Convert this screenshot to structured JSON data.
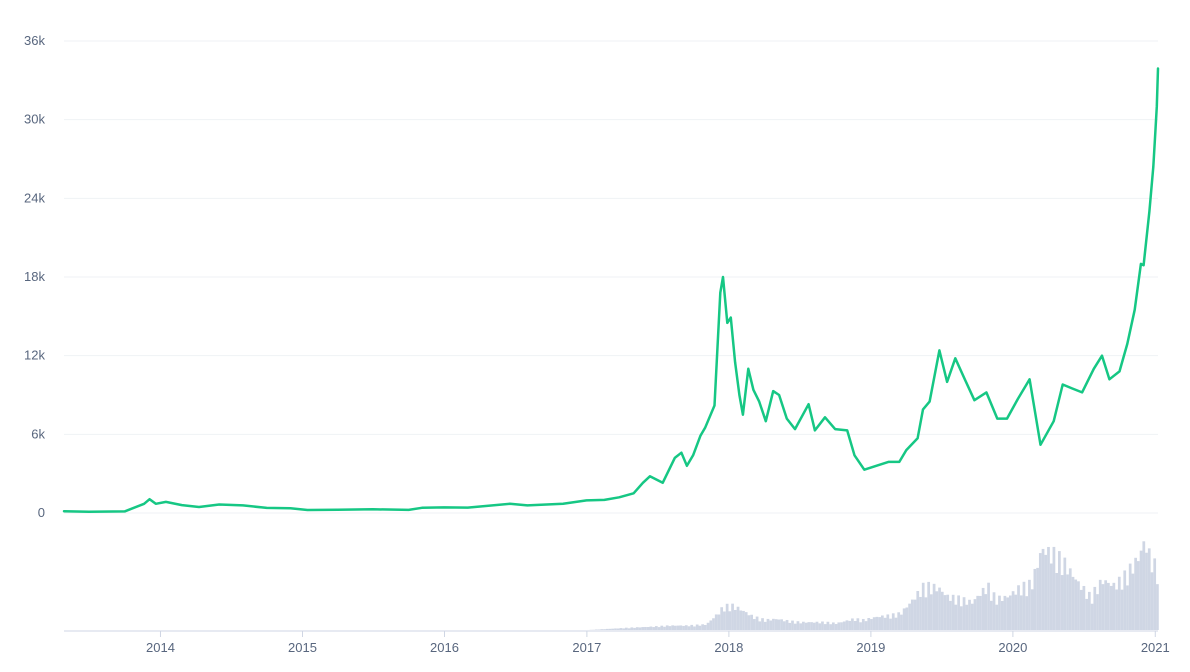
{
  "chart_data": {
    "type": "line",
    "title": "",
    "xlabel": "",
    "ylabel": "",
    "ylim": [
      0,
      36000
    ],
    "xlim": [
      "2013-04-28",
      "2021-01-08"
    ],
    "grid": true,
    "y_tick_labels": [
      "0",
      "6k",
      "12k",
      "18k",
      "24k",
      "30k",
      "36k"
    ],
    "y_tick_values": [
      0,
      6000,
      12000,
      18000,
      24000,
      30000,
      36000
    ],
    "x_tick_labels": [
      "2014",
      "2015",
      "2016",
      "2017",
      "2018",
      "2019",
      "2020",
      "2021"
    ],
    "x_tick_values": [
      "2014-01-01",
      "2015-01-01",
      "2016-01-01",
      "2017-01-01",
      "2018-01-01",
      "2019-01-01",
      "2020-01-01",
      "2021-01-01"
    ],
    "series": [
      {
        "name": "",
        "color": "#16c784",
        "x": [
          "2013-04-28",
          "2013-07-01",
          "2013-10-01",
          "2013-11-20",
          "2013-12-04",
          "2013-12-20",
          "2014-01-15",
          "2014-02-25",
          "2014-04-10",
          "2014-06-01",
          "2014-08-01",
          "2014-10-01",
          "2014-12-01",
          "2015-01-14",
          "2015-04-01",
          "2015-07-01",
          "2015-10-01",
          "2015-11-04",
          "2015-12-31",
          "2016-03-01",
          "2016-06-17",
          "2016-08-01",
          "2016-11-01",
          "2016-12-31",
          "2017-02-15",
          "2017-03-25",
          "2017-05-01",
          "2017-05-25",
          "2017-06-12",
          "2017-07-15",
          "2017-08-15",
          "2017-09-01",
          "2017-09-15",
          "2017-10-01",
          "2017-10-20",
          "2017-11-01",
          "2017-11-25",
          "2017-12-10",
          "2017-12-17",
          "2017-12-28",
          "2018-01-06",
          "2018-01-17",
          "2018-01-28",
          "2018-02-06",
          "2018-02-20",
          "2018-03-05",
          "2018-03-20",
          "2018-04-06",
          "2018-04-25",
          "2018-05-10",
          "2018-05-30",
          "2018-06-20",
          "2018-07-25",
          "2018-08-10",
          "2018-09-05",
          "2018-10-01",
          "2018-11-01",
          "2018-11-20",
          "2018-12-15",
          "2019-01-15",
          "2019-02-15",
          "2019-03-15",
          "2019-04-02",
          "2019-05-01",
          "2019-05-15",
          "2019-06-01",
          "2019-06-26",
          "2019-07-16",
          "2019-08-06",
          "2019-09-01",
          "2019-09-24",
          "2019-10-25",
          "2019-11-22",
          "2019-12-17",
          "2020-01-14",
          "2020-02-13",
          "2020-03-12",
          "2020-04-15",
          "2020-05-08",
          "2020-06-01",
          "2020-06-27",
          "2020-07-27",
          "2020-08-17",
          "2020-09-05",
          "2020-10-01",
          "2020-10-21",
          "2020-11-09",
          "2020-11-25",
          "2020-12-02",
          "2020-12-17",
          "2020-12-27",
          "2021-01-01",
          "2021-01-05",
          "2021-01-08"
        ],
        "values": [
          140,
          90,
          120,
          700,
          1050,
          700,
          850,
          600,
          460,
          650,
          580,
          390,
          360,
          230,
          250,
          280,
          240,
          400,
          430,
          410,
          700,
          580,
          710,
          960,
          1000,
          1200,
          1500,
          2300,
          2800,
          2300,
          4200,
          4600,
          3600,
          4400,
          5900,
          6500,
          8200,
          16800,
          18000,
          14500,
          14900,
          11500,
          9000,
          7500,
          11000,
          9400,
          8500,
          7000,
          9300,
          9000,
          7200,
          6400,
          8300,
          6300,
          7300,
          6400,
          6300,
          4400,
          3300,
          3600,
          3900,
          3900,
          4800,
          5700,
          7900,
          8500,
          12400,
          10000,
          11800,
          10100,
          8600,
          9200,
          7200,
          7200,
          8700,
          10200,
          5200,
          7000,
          9800,
          9500,
          9200,
          11000,
          12000,
          10200,
          10800,
          12900,
          15500,
          19000,
          18900,
          23000,
          26400,
          29000,
          31000,
          33900
        ]
      }
    ],
    "volume": {
      "color": "#cfd6e4",
      "note": "",
      "x": [
        "2013-04-28",
        "2016-12-31",
        "2017-04-15",
        "2017-06-15",
        "2017-08-01",
        "2017-09-15",
        "2017-11-01",
        "2017-12-01",
        "2017-12-15",
        "2018-01-05",
        "2018-01-20",
        "2018-02-10",
        "2018-03-01",
        "2018-04-01",
        "2018-05-01",
        "2018-06-01",
        "2018-07-01",
        "2018-08-01",
        "2018-09-01",
        "2018-10-01",
        "2018-11-15",
        "2018-12-10",
        "2019-01-15",
        "2019-02-15",
        "2019-03-15",
        "2019-04-10",
        "2019-05-15",
        "2019-06-20",
        "2019-07-15",
        "2019-08-15",
        "2019-09-15",
        "2019-10-25",
        "2019-11-15",
        "2019-12-15",
        "2020-01-15",
        "2020-02-15",
        "2020-03-12",
        "2020-04-15",
        "2020-05-10",
        "2020-06-15",
        "2020-07-15",
        "2020-08-15",
        "2020-09-15",
        "2020-10-15",
        "2020-11-15",
        "2020-12-01",
        "2020-12-20",
        "2021-01-04",
        "2021-01-08"
      ],
      "values": [
        0,
        0,
        0.02,
        0.03,
        0.04,
        0.04,
        0.05,
        0.15,
        0.21,
        0.22,
        0.2,
        0.16,
        0.12,
        0.09,
        0.1,
        0.08,
        0.07,
        0.07,
        0.07,
        0.06,
        0.1,
        0.09,
        0.12,
        0.13,
        0.15,
        0.25,
        0.4,
        0.38,
        0.3,
        0.28,
        0.25,
        0.4,
        0.28,
        0.3,
        0.38,
        0.42,
        0.73,
        0.68,
        0.6,
        0.42,
        0.3,
        0.45,
        0.4,
        0.5,
        0.65,
        0.8,
        0.62,
        0.55,
        0.9
      ]
    }
  }
}
